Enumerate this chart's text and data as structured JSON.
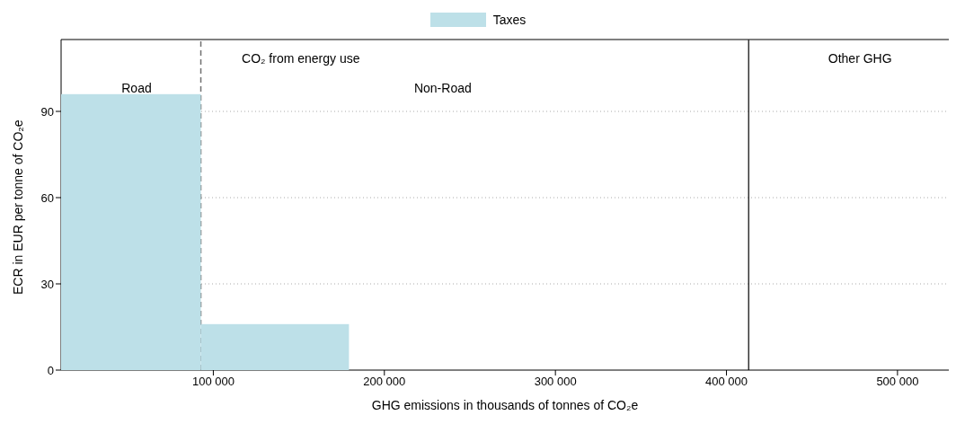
{
  "chart_data": {
    "type": "histogram",
    "xlabel": "GHG emissions in thousands of tonnes of CO₂e",
    "ylabel": "ECR in EUR per tonne of CO₂e",
    "bins": [
      11000,
      92700,
      179300
    ],
    "series": [
      {
        "name": "Taxes",
        "color": "#bde0e8",
        "values": [
          96,
          16
        ]
      }
    ],
    "xlim": [
      11000,
      530000
    ],
    "xticks": [
      {
        "value": 100000,
        "label": "100 000"
      },
      {
        "value": 200000,
        "label": "200 000"
      },
      {
        "value": 300000,
        "label": "300 000"
      },
      {
        "value": 400000,
        "label": "400 000"
      },
      {
        "value": 500000,
        "label": "500 000"
      }
    ],
    "ylim": [
      0,
      115
    ],
    "yticks": [
      0,
      30,
      60,
      90
    ],
    "grid": "y",
    "legend": "top",
    "ref_lines": [
      {
        "axis": "x",
        "value": 92700,
        "color": "#707070",
        "line_style": "dashed"
      },
      {
        "axis": "x",
        "value": 413000,
        "color": "#333333",
        "line_style": "solid"
      }
    ],
    "annotations": [
      "CO₂ from energy use",
      "Road",
      "Non-Road",
      "Other GHG"
    ]
  }
}
